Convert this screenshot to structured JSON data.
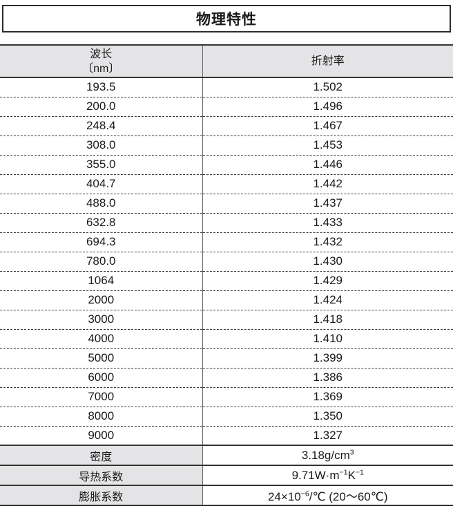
{
  "page": {
    "title": "物理特性"
  },
  "table": {
    "columns": {
      "wavelength_line1": "波长",
      "wavelength_line2": "〔nm〕",
      "refractive_index": "折射率"
    },
    "rows": [
      {
        "wavelength": "193.5",
        "refractive_index": "1.502"
      },
      {
        "wavelength": "200.0",
        "refractive_index": "1.496"
      },
      {
        "wavelength": "248.4",
        "refractive_index": "1.467"
      },
      {
        "wavelength": "308.0",
        "refractive_index": "1.453"
      },
      {
        "wavelength": "355.0",
        "refractive_index": "1.446"
      },
      {
        "wavelength": "404.7",
        "refractive_index": "1.442"
      },
      {
        "wavelength": "488.0",
        "refractive_index": "1.437"
      },
      {
        "wavelength": "632.8",
        "refractive_index": "1.433"
      },
      {
        "wavelength": "694.3",
        "refractive_index": "1.432"
      },
      {
        "wavelength": "780.0",
        "refractive_index": "1.430"
      },
      {
        "wavelength": "1064",
        "refractive_index": "1.429"
      },
      {
        "wavelength": "2000",
        "refractive_index": "1.424"
      },
      {
        "wavelength": "3000",
        "refractive_index": "1.418"
      },
      {
        "wavelength": "4000",
        "refractive_index": "1.410"
      },
      {
        "wavelength": "5000",
        "refractive_index": "1.399"
      },
      {
        "wavelength": "6000",
        "refractive_index": "1.386"
      },
      {
        "wavelength": "7000",
        "refractive_index": "1.369"
      },
      {
        "wavelength": "8000",
        "refractive_index": "1.350"
      },
      {
        "wavelength": "9000",
        "refractive_index": "1.327"
      }
    ],
    "properties": [
      {
        "label": "密度",
        "value_segments": [
          {
            "t": "3.18g/cm"
          },
          {
            "t": "3",
            "sup": true
          }
        ]
      },
      {
        "label": "导热系数",
        "value_segments": [
          {
            "t": "9.71W·m"
          },
          {
            "t": "−1",
            "sup": true
          },
          {
            "t": "K"
          },
          {
            "t": "−1",
            "sup": true
          }
        ]
      },
      {
        "label": "膨胀系数",
        "value_segments": [
          {
            "t": "24×10"
          },
          {
            "t": "−6",
            "sup": true
          },
          {
            "t": "/℃ (20～60℃)"
          }
        ]
      }
    ]
  },
  "colors": {
    "header_bg": "#e4e4e6",
    "border_dark": "#333333",
    "column_divider": "#666666",
    "text": "#1a1a1a"
  }
}
